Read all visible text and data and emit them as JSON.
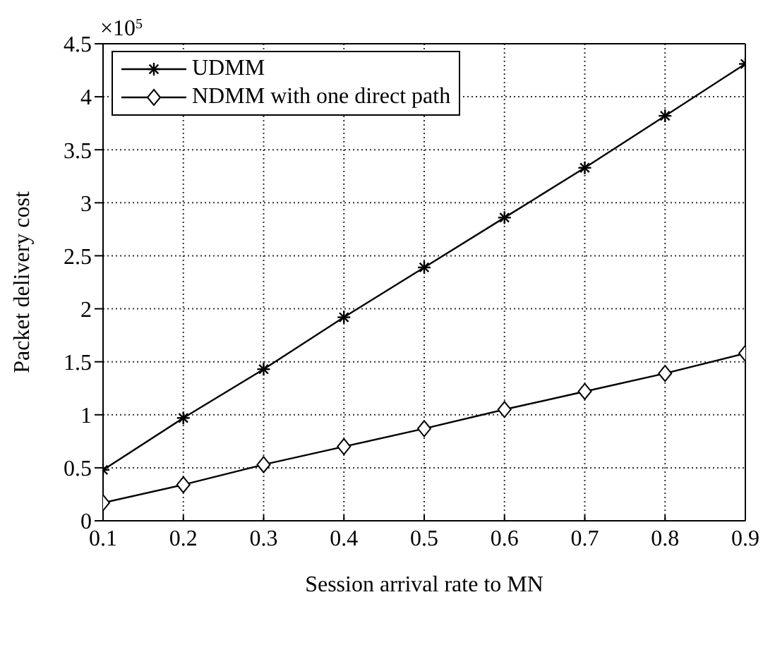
{
  "chart_data": {
    "type": "line",
    "xlabel": "Session arrival rate to MN",
    "ylabel": "Packet delivery cost",
    "annotations": [
      "×10$^{5}$"
    ],
    "x": [
      0.1,
      0.2,
      0.3,
      0.4,
      0.5,
      0.6,
      0.7,
      0.8,
      0.9
    ],
    "series": [
      {
        "name": "UDMM",
        "color": "#000000",
        "marker": "cross",
        "values": [
          0.48,
          0.97,
          1.43,
          1.92,
          2.39,
          2.86,
          3.33,
          3.82,
          4.31
        ]
      },
      {
        "name": "NDMM with one direct path",
        "color": "#000000",
        "marker": "diamond",
        "values": [
          0.17,
          0.34,
          0.53,
          0.7,
          0.87,
          1.05,
          1.22,
          1.39,
          1.58
        ]
      }
    ],
    "xlim": [
      0.1,
      0.9
    ],
    "xticks": [
      0.1,
      0.2,
      0.3,
      0.4,
      0.5,
      0.6,
      0.7,
      0.8,
      0.9
    ],
    "ylim": [
      0,
      4.5
    ],
    "yticks": [
      0,
      0.5,
      1,
      1.5,
      2,
      2.5,
      3,
      3.5,
      4,
      4.5
    ],
    "grid": true,
    "legend": "top left",
    "line_style": "solid"
  }
}
